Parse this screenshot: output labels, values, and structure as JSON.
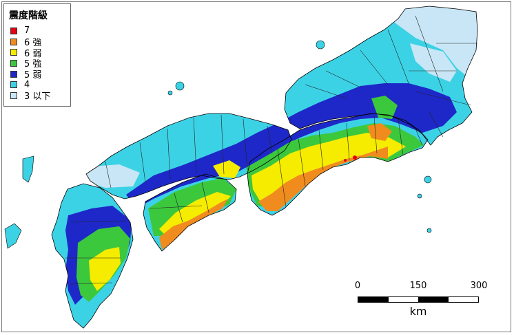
{
  "legend": {
    "title": "震度階級",
    "items": [
      {
        "label": "7",
        "color": "#e60012"
      },
      {
        "label": "6 強",
        "color": "#f08c1e"
      },
      {
        "label": "6 弱",
        "color": "#f5ec00"
      },
      {
        "label": "5 強",
        "color": "#3cc83c"
      },
      {
        "label": "5 弱",
        "color": "#1e28c8"
      },
      {
        "label": "4",
        "color": "#3cd2e6"
      },
      {
        "label": "3 以下",
        "color": "#c8e6f5"
      }
    ]
  },
  "scale_bar": {
    "ticks": [
      "0",
      "150",
      "300"
    ],
    "unit": "km"
  }
}
